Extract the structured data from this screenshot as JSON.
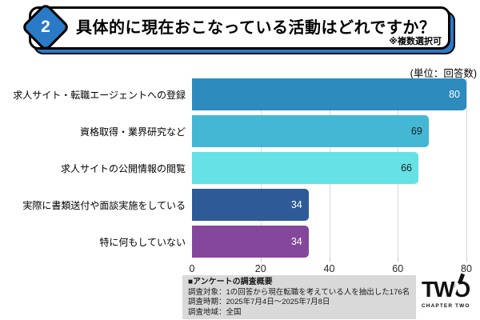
{
  "header": {
    "number": "2",
    "title": "具体的に現在おこなっている活動はどれですか？",
    "note": "※複数選択可"
  },
  "unit_label": "(単位：回答数)",
  "chart_data": {
    "type": "bar",
    "orientation": "horizontal",
    "title": "具体的に現在おこなっている活動はどれですか？",
    "categories": [
      "求人サイト・転職エージェントへの登録",
      "資格取得・業界研究など",
      "求人サイトの公開情報の閲覧",
      "実際に書類送付や面談実施をしている",
      "特に何もしていない"
    ],
    "values": [
      80,
      69,
      66,
      34,
      34
    ],
    "bar_colors": [
      "#2d8bbd",
      "#43b7d4",
      "#66e1e6",
      "#2e5b97",
      "#84479c"
    ],
    "value_label_colors": [
      "#ffffff",
      "#1f1f1f",
      "#1f1f1f",
      "#ffffff",
      "#ffffff"
    ],
    "xlim": [
      0,
      80
    ],
    "xticks": [
      0,
      20,
      40,
      60,
      80
    ],
    "grid": true,
    "unit": "回答数",
    "legend": "none"
  },
  "survey_summary": {
    "title": "■アンケートの調査概要",
    "lines": [
      "調査対象：1の回答から現在転職を考えている人を抽出した176名",
      "調査時期：2025年7月4日～2025年7月8日",
      "調査地域：全国"
    ]
  },
  "logo": {
    "text": "TWO",
    "subtext": "CHAPTER TWO"
  },
  "colors": {
    "badge_blue": "#2b7ac7",
    "grid_gray": "#d9d9d9",
    "summary_bg": "#d9d9d9"
  }
}
